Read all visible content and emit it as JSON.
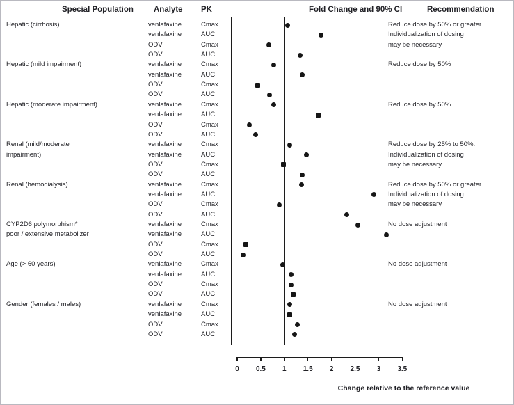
{
  "header": {
    "special_population": "Special Population",
    "analyte": "Analyte",
    "pk": "PK",
    "fold_change": "Fold Change and 90% CI",
    "recommendation": "Recommendation"
  },
  "colors": {
    "marker": "#161616",
    "line": "#1c1c1c",
    "text": "#212126"
  },
  "chart_data": {
    "type": "scatter",
    "subtype": "forest-dot-plot",
    "title": "Fold Change and 90% CI",
    "xlabel": "Change relative to the reference value",
    "xlim": [
      0,
      3.5
    ],
    "reference_line": 1.0,
    "grid": false,
    "ticks": [
      {
        "value": 0,
        "label": "0"
      },
      {
        "value": 0.5,
        "label": "0.5"
      },
      {
        "value": 1,
        "label": "1"
      },
      {
        "value": 1.5,
        "label": "1.5"
      },
      {
        "value": 2,
        "label": "2"
      },
      {
        "value": 2.5,
        "label": "2.5"
      },
      {
        "value": 3,
        "label": "3"
      },
      {
        "value": 3.5,
        "label": "3.5"
      }
    ],
    "rows": [
      {
        "population": "Hepatic (cirrhosis)",
        "analyte": "venlafaxine",
        "pk": "Cmax",
        "value": 1.07,
        "marker": "circle",
        "recommendation": "Reduce dose by 50% or greater"
      },
      {
        "population": "",
        "analyte": "venlafaxine",
        "pk": "AUC",
        "value": 1.78,
        "marker": "circle",
        "recommendation": "Individualization of dosing"
      },
      {
        "population": "",
        "analyte": "ODV",
        "pk": "Cmax",
        "value": 0.67,
        "marker": "circle",
        "recommendation": "may be necessary"
      },
      {
        "population": "",
        "analyte": "ODV",
        "pk": "AUC",
        "value": 1.33,
        "marker": "circle",
        "recommendation": ""
      },
      {
        "population": "Hepatic (mild impairment)",
        "analyte": "venlafaxine",
        "pk": "Cmax",
        "value": 0.78,
        "marker": "circle",
        "recommendation": "Reduce dose by 50%"
      },
      {
        "population": "",
        "analyte": "venlafaxine",
        "pk": "AUC",
        "value": 1.38,
        "marker": "circle",
        "recommendation": ""
      },
      {
        "population": "",
        "analyte": "ODV",
        "pk": "Cmax",
        "value": 0.43,
        "marker": "square",
        "recommendation": ""
      },
      {
        "population": "",
        "analyte": "ODV",
        "pk": "AUC",
        "value": 0.69,
        "marker": "circle",
        "recommendation": ""
      },
      {
        "population": "Hepatic (moderate impairment)",
        "analyte": "venlafaxine",
        "pk": "Cmax",
        "value": 0.77,
        "marker": "circle",
        "recommendation": "Reduce dose by 50%"
      },
      {
        "population": "",
        "analyte": "venlafaxine",
        "pk": "AUC",
        "value": 1.72,
        "marker": "square",
        "recommendation": ""
      },
      {
        "population": "",
        "analyte": "ODV",
        "pk": "Cmax",
        "value": 0.26,
        "marker": "circle",
        "recommendation": ""
      },
      {
        "population": "",
        "analyte": "ODV",
        "pk": "AUC",
        "value": 0.39,
        "marker": "circle",
        "recommendation": ""
      },
      {
        "population": "Renal (mild/moderate",
        "analyte": "venlafaxine",
        "pk": "Cmax",
        "value": 1.11,
        "marker": "circle",
        "recommendation": "Reduce dose by 25% to 50%."
      },
      {
        "population": "impairment)",
        "analyte": "venlafaxine",
        "pk": "AUC",
        "value": 1.47,
        "marker": "circle",
        "recommendation": "Individualization of dosing"
      },
      {
        "population": "",
        "analyte": "ODV",
        "pk": "Cmax",
        "value": 0.98,
        "marker": "square",
        "recommendation": "may be necessary"
      },
      {
        "population": "",
        "analyte": "ODV",
        "pk": "AUC",
        "value": 1.38,
        "marker": "circle",
        "recommendation": ""
      },
      {
        "population": "Renal (hemodialysis)",
        "analyte": "venlafaxine",
        "pk": "Cmax",
        "value": 1.37,
        "marker": "circle",
        "recommendation": "Reduce dose by 50% or greater"
      },
      {
        "population": "",
        "analyte": "venlafaxine",
        "pk": "AUC",
        "value": 2.9,
        "marker": "circle",
        "recommendation": "Individualization of dosing"
      },
      {
        "population": "",
        "analyte": "ODV",
        "pk": "Cmax",
        "value": 0.89,
        "marker": "circle",
        "recommendation": "may be necessary"
      },
      {
        "population": "",
        "analyte": "ODV",
        "pk": "AUC",
        "value": 2.33,
        "marker": "circle",
        "recommendation": ""
      },
      {
        "population": "CYP2D6 polymorphism*",
        "analyte": "venlafaxine",
        "pk": "Cmax",
        "value": 2.56,
        "marker": "circle",
        "recommendation": "No dose adjustment"
      },
      {
        "population": "poor / extensive metabolizer",
        "analyte": "venlafaxine",
        "pk": "AUC",
        "value": 3.17,
        "marker": "circle",
        "recommendation": ""
      },
      {
        "population": "",
        "analyte": "ODV",
        "pk": "Cmax",
        "value": 0.19,
        "marker": "square",
        "recommendation": ""
      },
      {
        "population": "",
        "analyte": "ODV",
        "pk": "AUC",
        "value": 0.12,
        "marker": "circle",
        "recommendation": ""
      },
      {
        "population": "Age (> 60 years)",
        "analyte": "venlafaxine",
        "pk": "Cmax",
        "value": 0.97,
        "marker": "circle",
        "recommendation": "No dose adjustment"
      },
      {
        "population": "",
        "analyte": "venlafaxine",
        "pk": "AUC",
        "value": 1.15,
        "marker": "circle",
        "recommendation": ""
      },
      {
        "population": "",
        "analyte": "ODV",
        "pk": "Cmax",
        "value": 1.15,
        "marker": "circle",
        "recommendation": ""
      },
      {
        "population": "",
        "analyte": "ODV",
        "pk": "AUC",
        "value": 1.18,
        "marker": "square",
        "recommendation": ""
      },
      {
        "population": "Gender (females / males)",
        "analyte": "venlafaxine",
        "pk": "Cmax",
        "value": 1.12,
        "marker": "circle",
        "recommendation": "No dose adjustment"
      },
      {
        "population": "",
        "analyte": "venlafaxine",
        "pk": "AUC",
        "value": 1.12,
        "marker": "square",
        "recommendation": ""
      },
      {
        "population": "",
        "analyte": "ODV",
        "pk": "Cmax",
        "value": 1.27,
        "marker": "circle",
        "recommendation": ""
      },
      {
        "population": "",
        "analyte": "ODV",
        "pk": "AUC",
        "value": 1.22,
        "marker": "circle",
        "recommendation": ""
      }
    ]
  }
}
